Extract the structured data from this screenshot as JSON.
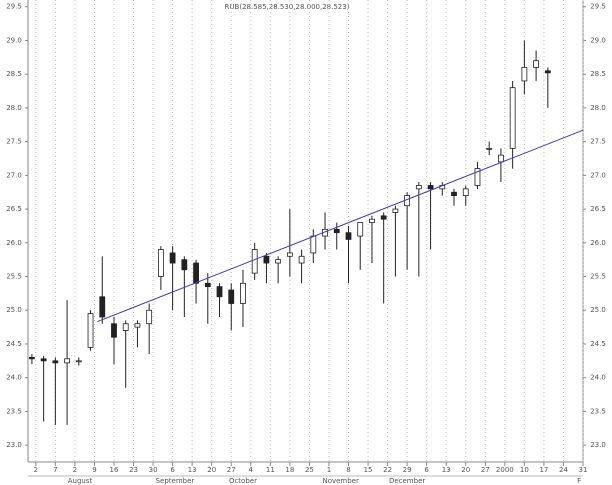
{
  "chart_data": {
    "type": "candlestick",
    "title": "RUB(28.585,28.530,28.000,28.523)",
    "x": [
      1,
      4,
      7,
      10,
      13,
      16,
      19,
      22,
      25,
      28,
      31,
      34,
      37,
      40,
      43,
      46,
      49,
      52,
      55,
      58,
      61,
      64,
      67,
      70,
      73,
      76,
      79,
      82,
      85,
      88,
      91,
      94,
      97,
      100,
      103,
      106,
      109,
      112,
      115,
      118,
      121,
      124,
      127,
      130,
      133
    ],
    "open": [
      24.3,
      24.28,
      24.25,
      24.22,
      24.25,
      24.45,
      25.2,
      24.8,
      24.7,
      24.75,
      24.8,
      25.5,
      25.85,
      25.75,
      25.7,
      25.4,
      25.35,
      25.3,
      25.1,
      25.55,
      25.8,
      25.7,
      25.8,
      25.7,
      25.85,
      26.1,
      26.2,
      26.15,
      26.1,
      26.3,
      26.4,
      26.45,
      26.55,
      26.8,
      26.85,
      26.8,
      26.75,
      26.7,
      26.85,
      27.4,
      27.2,
      27.4,
      28.4,
      28.6,
      28.55
    ],
    "high": [
      24.35,
      24.32,
      24.3,
      25.15,
      24.3,
      25.0,
      25.8,
      24.9,
      24.85,
      24.85,
      25.1,
      25.95,
      25.95,
      25.8,
      25.75,
      25.55,
      25.4,
      25.4,
      25.6,
      26.0,
      25.85,
      25.8,
      26.5,
      25.9,
      26.2,
      26.45,
      26.3,
      26.25,
      26.3,
      26.4,
      26.45,
      26.55,
      26.75,
      26.9,
      26.9,
      26.9,
      26.8,
      26.85,
      27.2,
      27.5,
      27.4,
      28.4,
      29.0,
      28.85,
      28.6
    ],
    "low": [
      24.2,
      23.35,
      23.3,
      23.3,
      24.18,
      24.4,
      24.8,
      24.2,
      23.85,
      24.45,
      24.35,
      25.3,
      25.0,
      24.9,
      25.1,
      24.8,
      24.9,
      24.7,
      24.75,
      25.45,
      25.4,
      25.4,
      25.5,
      25.4,
      25.7,
      25.9,
      25.9,
      25.4,
      25.6,
      25.7,
      25.1,
      25.5,
      25.6,
      25.5,
      25.9,
      26.7,
      26.55,
      26.55,
      26.8,
      27.3,
      26.9,
      27.1,
      28.2,
      28.4,
      28.0
    ],
    "close": [
      24.28,
      24.25,
      24.22,
      24.28,
      24.25,
      24.95,
      24.9,
      24.6,
      24.8,
      24.8,
      25.0,
      25.9,
      25.7,
      25.6,
      25.4,
      25.35,
      25.2,
      25.1,
      25.4,
      25.9,
      25.7,
      25.75,
      25.85,
      25.8,
      26.1,
      26.2,
      26.15,
      26.05,
      26.3,
      26.35,
      26.35,
      26.5,
      26.7,
      26.85,
      26.8,
      26.85,
      26.7,
      26.8,
      27.1,
      27.4,
      27.3,
      28.3,
      28.6,
      28.7,
      28.52
    ],
    "trend": {
      "x": [
        17.7,
        142
      ],
      "y": [
        24.83,
        27.67
      ],
      "color": "#3a3ac8"
    },
    "xlim": [
      0,
      142
    ],
    "xticks": [
      2,
      7,
      {
        "value": 12,
        "label": "2"
      },
      {
        "value": 17,
        "label": "9"
      },
      {
        "value": 22,
        "label": "16"
      },
      {
        "value": 27,
        "label": "23"
      },
      {
        "value": 32,
        "label": "30"
      },
      {
        "value": 37,
        "label": "6"
      },
      {
        "value": 42,
        "label": "13"
      },
      {
        "value": 47,
        "label": "20"
      },
      {
        "value": 52,
        "label": "27"
      },
      {
        "value": 57,
        "label": "4"
      },
      {
        "value": 62,
        "label": "11"
      },
      {
        "value": 67,
        "label": "18"
      },
      {
        "value": 72,
        "label": "25"
      },
      {
        "value": 77,
        "label": "1"
      },
      {
        "value": 82,
        "label": "8"
      },
      {
        "value": 87,
        "label": "15"
      },
      {
        "value": 92,
        "label": "22"
      },
      {
        "value": 97,
        "label": "29"
      },
      {
        "value": 102,
        "label": "6"
      },
      {
        "value": 107,
        "label": "13"
      },
      {
        "value": 112,
        "label": "20"
      },
      {
        "value": 117,
        "label": "27"
      },
      {
        "value": 122,
        "label": "2000"
      },
      {
        "value": 127,
        "label": "10"
      },
      {
        "value": 132,
        "label": "17"
      },
      {
        "value": 137,
        "label": "24"
      },
      {
        "value": 142,
        "label": "31"
      }
    ],
    "months": {
      "x": [
        13.3,
        37.6,
        55,
        80,
        97,
        141
      ],
      "labels": [
        "August",
        "September",
        "October",
        "November",
        "December",
        "F"
      ]
    },
    "ylim": [
      22.75,
      29.6
    ],
    "yticks": [
      {
        "value": 23,
        "label": "23.0"
      },
      23.5,
      {
        "value": 24,
        "label": "24.0"
      },
      24.5,
      {
        "value": 25,
        "label": "25.0"
      },
      25.5,
      {
        "value": 26,
        "label": "26.0"
      },
      26.5,
      {
        "value": 27,
        "label": "27.0"
      },
      27.5,
      {
        "value": 28,
        "label": "28.0"
      },
      28.5,
      {
        "value": 29,
        "label": "29.0"
      },
      29.5
    ],
    "grid": true
  }
}
